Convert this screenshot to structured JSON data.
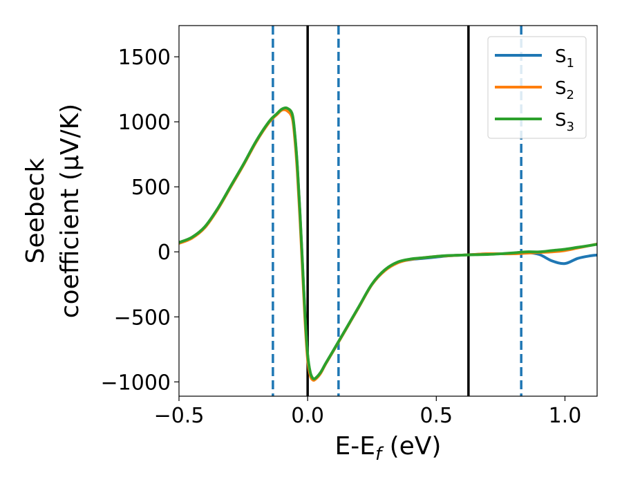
{
  "chart_data": {
    "type": "line",
    "xlabel": "E-E",
    "xlabel_sub": "f",
    "xlabel_unit": " (eV)",
    "ylabel_line1": "Seebeck",
    "ylabel_line2": "coefficient  (μV/K)",
    "xlim": [
      -0.5,
      1.125
    ],
    "ylim": [
      -1110,
      1740
    ],
    "xticks": [
      -0.5,
      0.0,
      0.5,
      1.0
    ],
    "xtick_labels": [
      "−0.5",
      "0.0",
      "0.5",
      "1.0"
    ],
    "yticks": [
      -1000,
      -500,
      0,
      500,
      1000,
      1500
    ],
    "ytick_labels": [
      "−1000",
      "−500",
      "0",
      "500",
      "1000",
      "1500"
    ],
    "legend_position": "top-right",
    "vertical_lines": [
      {
        "x": -0.135,
        "style": "dashed",
        "color": "#1f77b4"
      },
      {
        "x": 0.0,
        "style": "solid",
        "color": "#000000"
      },
      {
        "x": 0.12,
        "style": "dashed",
        "color": "#1f77b4"
      },
      {
        "x": 0.625,
        "style": "solid",
        "color": "#000000"
      },
      {
        "x": 0.83,
        "style": "dashed",
        "color": "#1f77b4"
      }
    ],
    "series": [
      {
        "name": "S",
        "sub": "1",
        "color": "#1f77b4",
        "x": [
          -0.5,
          -0.45,
          -0.4,
          -0.35,
          -0.3,
          -0.25,
          -0.2,
          -0.15,
          -0.12,
          -0.1,
          -0.08,
          -0.06,
          -0.05,
          -0.04,
          -0.03,
          -0.02,
          -0.01,
          0.0,
          0.01,
          0.02,
          0.03,
          0.05,
          0.07,
          0.1,
          0.15,
          0.2,
          0.25,
          0.3,
          0.35,
          0.4,
          0.45,
          0.5,
          0.55,
          0.6,
          0.65,
          0.7,
          0.75,
          0.8,
          0.85,
          0.9,
          0.95,
          1.0,
          1.05,
          1.1,
          1.125
        ],
        "y": [
          70,
          110,
          190,
          330,
          500,
          670,
          850,
          1000,
          1060,
          1095,
          1100,
          1050,
          900,
          650,
          300,
          -100,
          -500,
          -800,
          -930,
          -975,
          -975,
          -930,
          -860,
          -760,
          -590,
          -420,
          -250,
          -140,
          -80,
          -60,
          -50,
          -40,
          -30,
          -25,
          -20,
          -15,
          -15,
          -10,
          -5,
          -20,
          -70,
          -90,
          -50,
          -30,
          -25
        ]
      },
      {
        "name": "S",
        "sub": "2",
        "color": "#ff7f0e",
        "x": [
          -0.5,
          -0.45,
          -0.4,
          -0.35,
          -0.3,
          -0.25,
          -0.2,
          -0.15,
          -0.12,
          -0.1,
          -0.08,
          -0.06,
          -0.05,
          -0.04,
          -0.03,
          -0.02,
          -0.01,
          0.0,
          0.01,
          0.02,
          0.03,
          0.05,
          0.07,
          0.1,
          0.15,
          0.2,
          0.25,
          0.3,
          0.35,
          0.4,
          0.45,
          0.5,
          0.55,
          0.6,
          0.65,
          0.7,
          0.75,
          0.8,
          0.85,
          0.9,
          0.95,
          1.0,
          1.05,
          1.1,
          1.125
        ],
        "y": [
          65,
          105,
          185,
          325,
          495,
          665,
          845,
          995,
          1055,
          1090,
          1085,
          1030,
          870,
          610,
          260,
          -140,
          -540,
          -830,
          -950,
          -985,
          -980,
          -935,
          -862,
          -762,
          -592,
          -422,
          -252,
          -145,
          -85,
          -58,
          -45,
          -35,
          -30,
          -25,
          -20,
          -15,
          -15,
          -15,
          -10,
          -5,
          0,
          10,
          30,
          50,
          60
        ]
      },
      {
        "name": "S",
        "sub": "3",
        "color": "#2ca02c",
        "x": [
          -0.5,
          -0.45,
          -0.4,
          -0.35,
          -0.3,
          -0.25,
          -0.2,
          -0.15,
          -0.12,
          -0.1,
          -0.08,
          -0.06,
          -0.05,
          -0.04,
          -0.03,
          -0.02,
          -0.01,
          0.0,
          0.01,
          0.02,
          0.03,
          0.05,
          0.07,
          0.1,
          0.15,
          0.2,
          0.25,
          0.3,
          0.35,
          0.4,
          0.45,
          0.5,
          0.55,
          0.6,
          0.65,
          0.7,
          0.75,
          0.8,
          0.85,
          0.9,
          0.95,
          1.0,
          1.05,
          1.1,
          1.125
        ],
        "y": [
          72,
          112,
          192,
          332,
          502,
          672,
          852,
          1002,
          1062,
          1098,
          1105,
          1060,
          910,
          660,
          310,
          -90,
          -490,
          -790,
          -925,
          -972,
          -972,
          -928,
          -858,
          -758,
          -588,
          -418,
          -248,
          -138,
          -78,
          -55,
          -45,
          -35,
          -28,
          -25,
          -22,
          -20,
          -15,
          -8,
          0,
          0,
          10,
          20,
          35,
          50,
          58
        ]
      }
    ]
  }
}
